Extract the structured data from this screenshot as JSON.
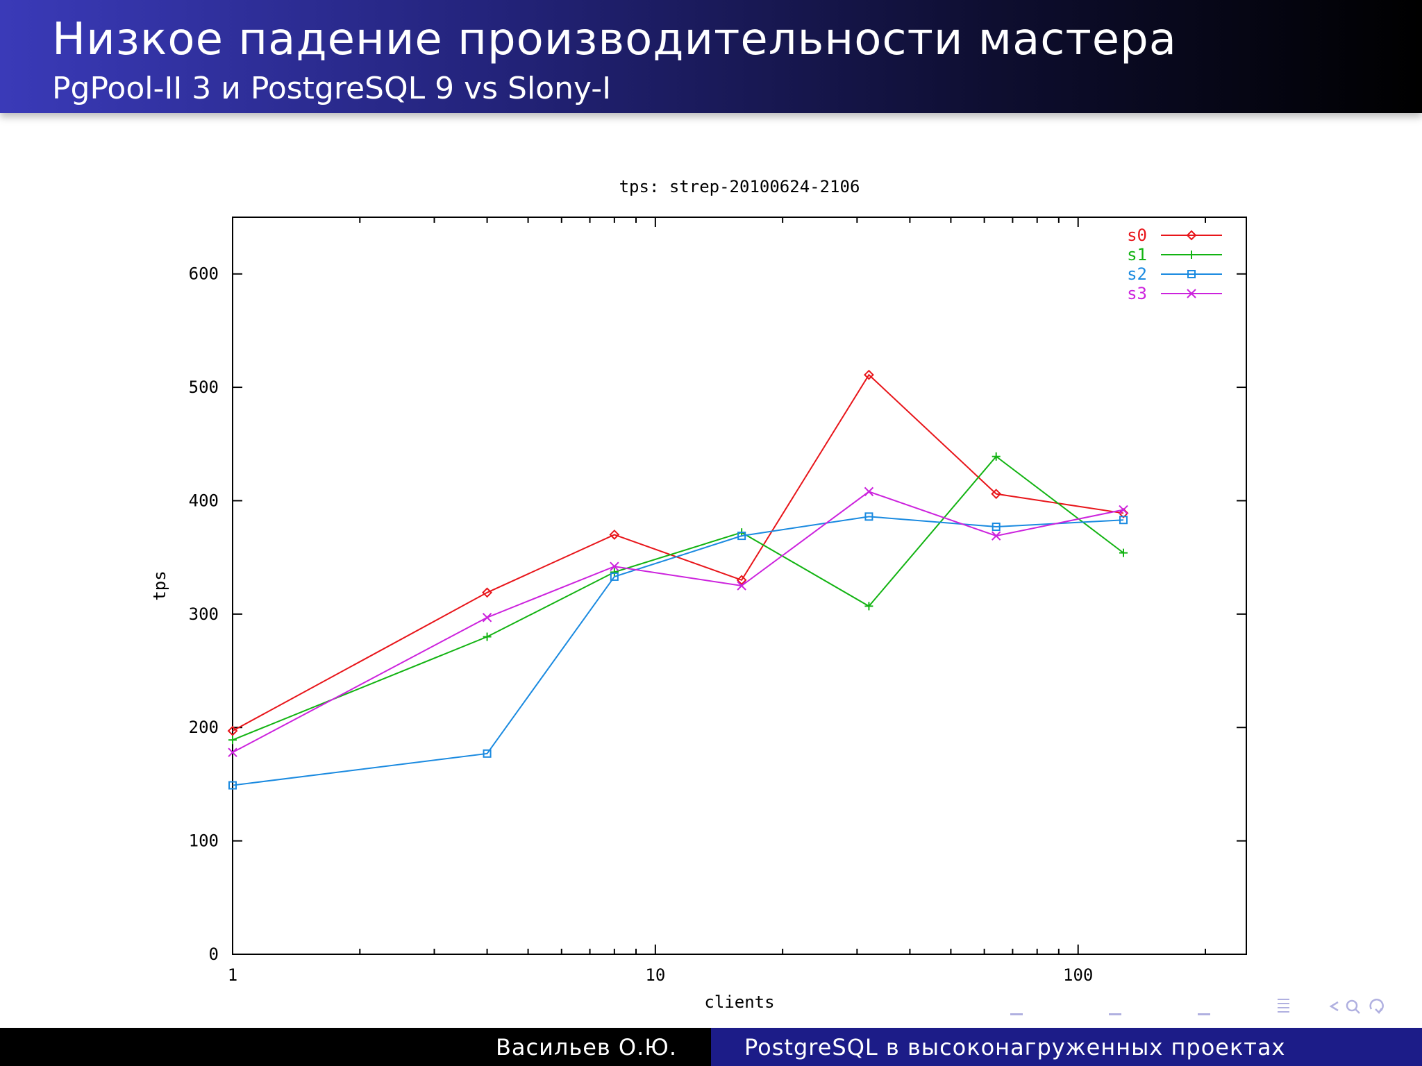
{
  "slide": {
    "title": "Низкое падение производительности мастера",
    "subtitle": "PgPool-II 3 и PostgreSQL 9 vs Slony-I"
  },
  "footer": {
    "author": "Васильев О.Ю.",
    "talk_title": "PostgreSQL в высоконагруженных проектах"
  },
  "nav": {
    "icons": [
      "nav-frame-icon",
      "nav-subsection-icon",
      "nav-section-icon",
      "nav-outline-icon",
      "nav-search-icon"
    ]
  },
  "chart_data": {
    "type": "line",
    "title": "tps: strep-20100624-2106",
    "xlabel": "clients",
    "ylabel": "tps",
    "xscale": "log",
    "xlim": [
      1,
      250
    ],
    "ylim": [
      0,
      650
    ],
    "xticks": [
      "1",
      "10",
      "100"
    ],
    "yticks": [
      "0",
      "100",
      "200",
      "300",
      "400",
      "500",
      "600"
    ],
    "grid": false,
    "legend_position": "top-right",
    "x": [
      1,
      4,
      8,
      16,
      32,
      64,
      128
    ],
    "series": [
      {
        "name": "s0",
        "color": "#e8151a",
        "marker": "diamond",
        "values": [
          197,
          319,
          370,
          330,
          511,
          406,
          389
        ]
      },
      {
        "name": "s1",
        "color": "#12b312",
        "marker": "plus",
        "values": [
          189,
          280,
          337,
          372,
          307,
          439,
          354
        ]
      },
      {
        "name": "s2",
        "color": "#1a8ae0",
        "marker": "square",
        "values": [
          149,
          177,
          333,
          369,
          386,
          377,
          383
        ]
      },
      {
        "name": "s3",
        "color": "#cc22dd",
        "marker": "cross",
        "values": [
          178,
          297,
          342,
          325,
          408,
          369,
          392
        ]
      }
    ]
  }
}
